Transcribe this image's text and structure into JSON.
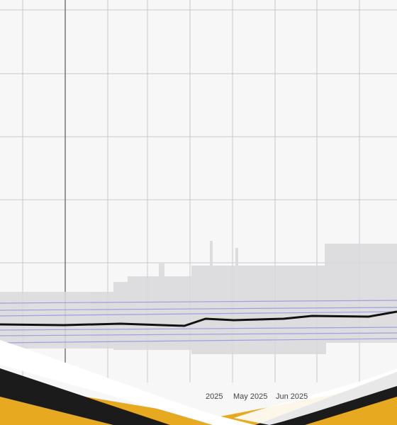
{
  "x_axis": {
    "labels": [
      "2025",
      "May 2025",
      "Jun 2025"
    ]
  }
}
